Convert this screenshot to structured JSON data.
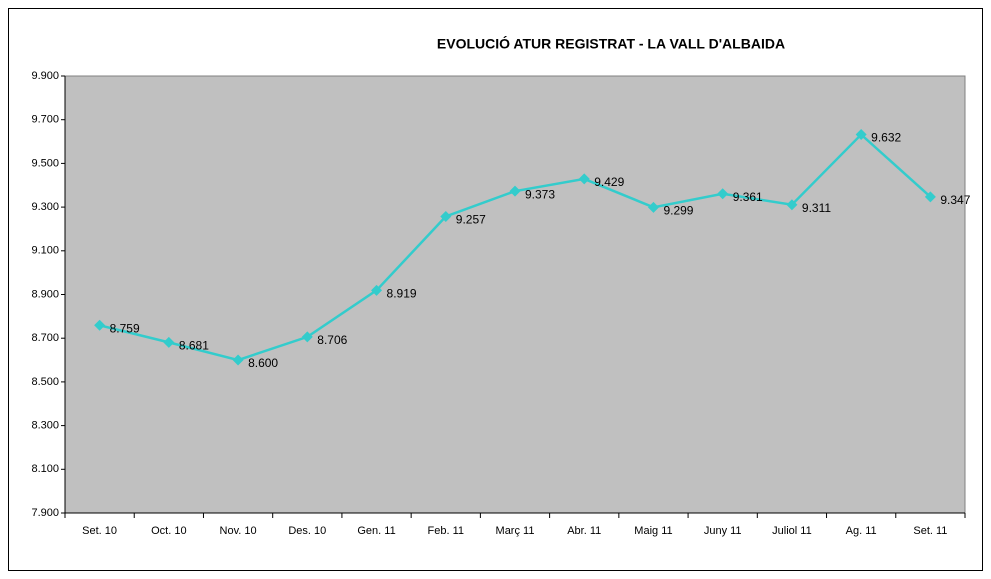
{
  "chart_data": {
    "type": "line",
    "title": "EVOLUCIÓ ATUR REGISTRAT - LA VALL D'ALBAIDA",
    "categories": [
      "Set. 10",
      "Oct. 10",
      "Nov. 10",
      "Des. 10",
      "Gen. 11",
      "Feb. 11",
      "Març 11",
      "Abr. 11",
      "Maig 11",
      "Juny 11",
      "Juliol 11",
      "Ag. 11",
      "Set. 11"
    ],
    "values": [
      8759,
      8681,
      8600,
      8706,
      8919,
      9257,
      9373,
      9429,
      9299,
      9361,
      9311,
      9632,
      9347
    ],
    "value_labels": [
      "8.759",
      "8.681",
      "8.600",
      "8.706",
      "8.919",
      "9.257",
      "9.373",
      "9.429",
      "9.299",
      "9.361",
      "9.311",
      "9.632",
      "9.347"
    ],
    "color": "#33cccc",
    "ylim": [
      7900,
      9900
    ],
    "yticks": [
      {
        "value": 7900,
        "label": "7.900"
      },
      {
        "value": 8100,
        "label": "8.100"
      },
      {
        "value": 8300,
        "label": "8.300"
      },
      {
        "value": 8500,
        "label": "8.500"
      },
      {
        "value": 8700,
        "label": "8.700"
      },
      {
        "value": 8900,
        "label": "8.900"
      },
      {
        "value": 9100,
        "label": "9.100"
      },
      {
        "value": 9300,
        "label": "9.300"
      },
      {
        "value": 9500,
        "label": "9.500"
      },
      {
        "value": 9700,
        "label": "9.700"
      },
      {
        "value": 9900,
        "label": "9.900"
      }
    ],
    "grid": false
  }
}
